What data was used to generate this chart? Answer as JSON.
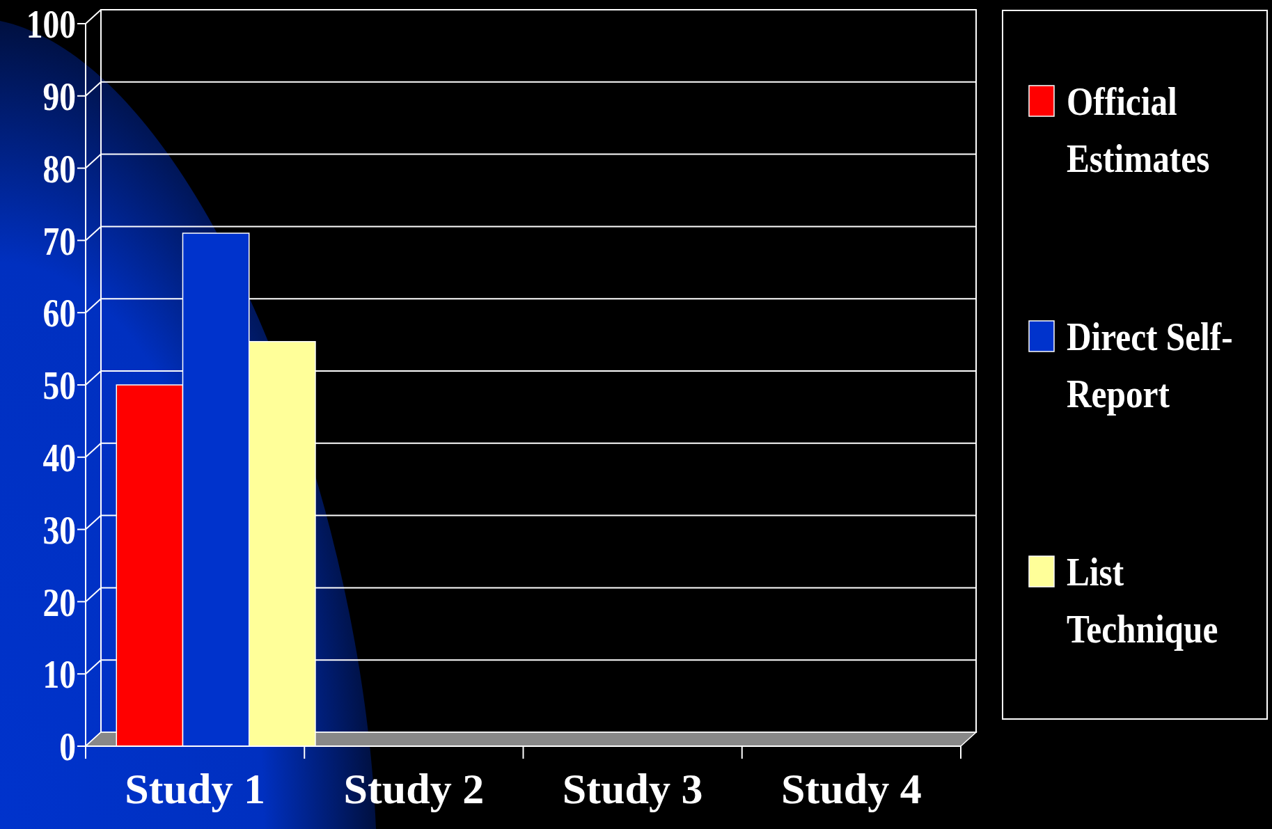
{
  "chart_data": {
    "type": "bar",
    "categories": [
      "Study 1",
      "Study 2",
      "Study 3",
      "Study 4"
    ],
    "series": [
      {
        "name": "Official Estimates",
        "color": "#ff0000",
        "values": [
          50,
          null,
          null,
          null
        ]
      },
      {
        "name": "Direct Self-Report",
        "color": "#0033cc",
        "values": [
          71,
          null,
          null,
          null
        ]
      },
      {
        "name": "List Technique",
        "color": "#ffff99",
        "values": [
          56,
          null,
          null,
          null
        ]
      }
    ],
    "ylim": [
      0,
      100
    ],
    "yticks": [
      0,
      10,
      20,
      30,
      40,
      50,
      60,
      70,
      80,
      90,
      100
    ],
    "grid": "y",
    "legend": "right"
  }
}
